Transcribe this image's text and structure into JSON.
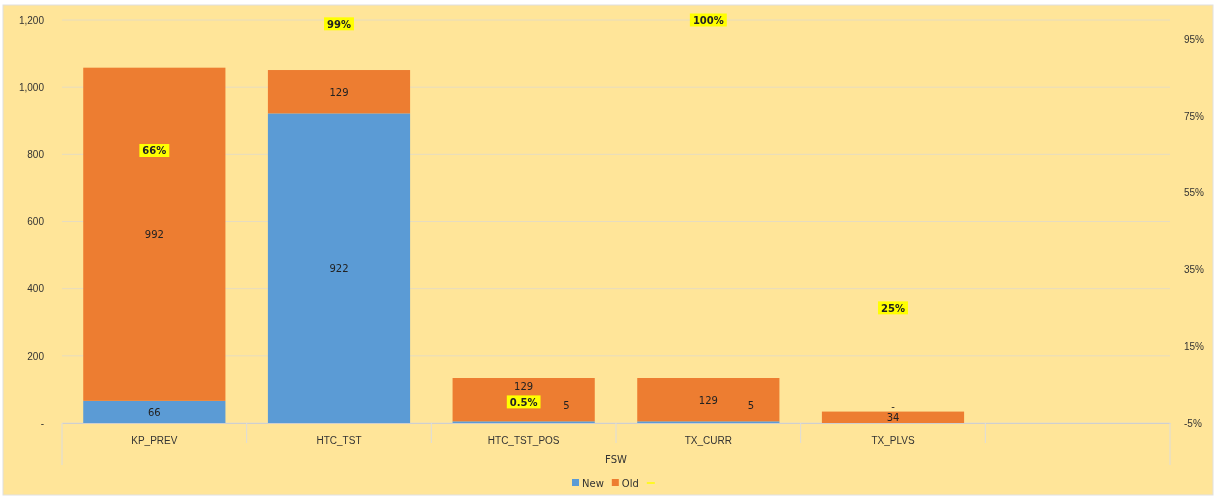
{
  "chart_data": {
    "type": "bar",
    "stacked": true,
    "xlabel": "FSW",
    "categories": [
      "KP_PREV",
      "HTC_TST",
      "HTC_TST_POS",
      "TX_CURR",
      "TX_PLVS",
      null
    ],
    "series": [
      {
        "name": "New",
        "color": "#5b9bd5",
        "values": [
          66,
          922,
          5,
          5,
          0,
          null
        ],
        "value_labels": [
          "66",
          "922",
          "5",
          "5",
          "-",
          null
        ]
      },
      {
        "name": "Old",
        "color": "#ed7d31",
        "values": [
          992,
          129,
          129,
          129,
          34,
          null
        ],
        "value_labels": [
          "992",
          "129",
          "129",
          "129",
          "34",
          null
        ]
      },
      {
        "type": "scatter",
        "marker": "square",
        "axis": "y2",
        "color": "#ffff00",
        "values": [
          66,
          99,
          0.5,
          100,
          25,
          null
        ],
        "value_labels": [
          "66%",
          "99%",
          "0.5%",
          "100%",
          "25%",
          null
        ]
      }
    ],
    "ylim": [
      0,
      1200
    ],
    "yticks": [
      {
        "value": 0,
        "label": "-"
      },
      200,
      400,
      600,
      800,
      {
        "value": 1000,
        "label": "1,000"
      },
      {
        "value": 1200,
        "label": "1,200"
      }
    ],
    "y2lim": [
      -5,
      100
    ],
    "y2ticks": [
      {
        "value": -5,
        "label": "-5%"
      },
      {
        "value": 15,
        "label": "15%"
      },
      {
        "value": 35,
        "label": "35%"
      },
      {
        "value": 55,
        "label": "55%"
      },
      {
        "value": 75,
        "label": "75%"
      },
      {
        "value": 95,
        "label": "95%"
      }
    ],
    "grid": "y",
    "legend": "bottom"
  }
}
